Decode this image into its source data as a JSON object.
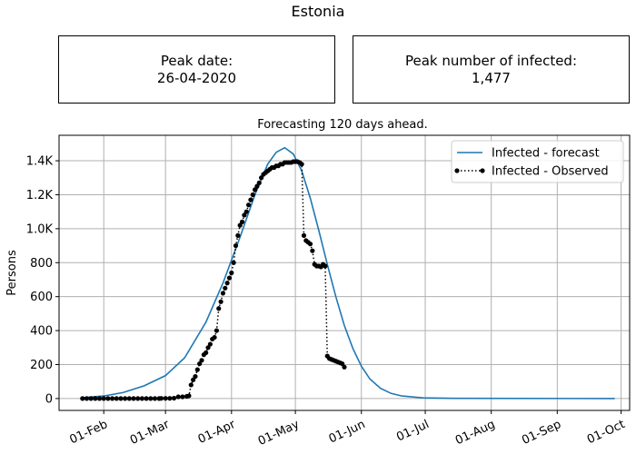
{
  "figure": {
    "suptitle": "Estonia",
    "peak_date_label": "Peak date:",
    "peak_date_value": "26-04-2020",
    "peak_infected_label": "Peak number of infected:",
    "peak_infected_value": "1,477"
  },
  "colors": {
    "forecast": "#1f77b4",
    "observed": "#000000",
    "grid": "#b0b0b0"
  },
  "chart_data": {
    "type": "line",
    "title": "Forecasting 120 days ahead.",
    "xlabel": "",
    "ylabel": "Persons",
    "grid": true,
    "legend_position": "top-right",
    "xlim": [
      "2020-01-11",
      "2020-10-05"
    ],
    "ylim": [
      -70,
      1550
    ],
    "x_ticks": [
      {
        "date": "2020-02-01",
        "label": "01-Feb"
      },
      {
        "date": "2020-03-01",
        "label": "01-Mar"
      },
      {
        "date": "2020-04-01",
        "label": "01-Apr"
      },
      {
        "date": "2020-05-01",
        "label": "01-May"
      },
      {
        "date": "2020-06-01",
        "label": "01-Jun"
      },
      {
        "date": "2020-07-01",
        "label": "01-Jul"
      },
      {
        "date": "2020-08-01",
        "label": "01-Aug"
      },
      {
        "date": "2020-09-01",
        "label": "01-Sep"
      },
      {
        "date": "2020-10-01",
        "label": "01-Oct"
      }
    ],
    "y_ticks": [
      {
        "value": 0,
        "label": "0"
      },
      {
        "value": 200,
        "label": "200"
      },
      {
        "value": 400,
        "label": "400"
      },
      {
        "value": 600,
        "label": "600"
      },
      {
        "value": 800,
        "label": "800"
      },
      {
        "value": 1000,
        "label": "1.0K"
      },
      {
        "value": 1200,
        "label": "1.2K"
      },
      {
        "value": 1400,
        "label": "1.4K"
      }
    ],
    "series": [
      {
        "name": "Infected - forecast",
        "style": "solid",
        "points": [
          [
            "2020-01-22",
            5
          ],
          [
            "2020-02-01",
            15
          ],
          [
            "2020-02-10",
            35
          ],
          [
            "2020-02-20",
            75
          ],
          [
            "2020-03-01",
            135
          ],
          [
            "2020-03-10",
            240
          ],
          [
            "2020-03-20",
            450
          ],
          [
            "2020-03-28",
            680
          ],
          [
            "2020-04-05",
            950
          ],
          [
            "2020-04-12",
            1200
          ],
          [
            "2020-04-18",
            1380
          ],
          [
            "2020-04-22",
            1450
          ],
          [
            "2020-04-26",
            1477
          ],
          [
            "2020-04-30",
            1440
          ],
          [
            "2020-05-04",
            1340
          ],
          [
            "2020-05-08",
            1180
          ],
          [
            "2020-05-12",
            990
          ],
          [
            "2020-05-16",
            790
          ],
          [
            "2020-05-20",
            600
          ],
          [
            "2020-05-24",
            430
          ],
          [
            "2020-05-28",
            295
          ],
          [
            "2020-06-01",
            190
          ],
          [
            "2020-06-05",
            115
          ],
          [
            "2020-06-10",
            60
          ],
          [
            "2020-06-15",
            30
          ],
          [
            "2020-06-20",
            15
          ],
          [
            "2020-06-30",
            4
          ],
          [
            "2020-07-15",
            1
          ],
          [
            "2020-09-28",
            0
          ]
        ]
      },
      {
        "name": "Infected - Observed",
        "style": "dotted-markers",
        "points": [
          [
            "2020-01-22",
            0
          ],
          [
            "2020-01-24",
            0
          ],
          [
            "2020-01-26",
            0
          ],
          [
            "2020-01-28",
            0
          ],
          [
            "2020-01-30",
            0
          ],
          [
            "2020-02-01",
            0
          ],
          [
            "2020-02-03",
            0
          ],
          [
            "2020-02-05",
            0
          ],
          [
            "2020-02-07",
            0
          ],
          [
            "2020-02-09",
            0
          ],
          [
            "2020-02-11",
            0
          ],
          [
            "2020-02-13",
            0
          ],
          [
            "2020-02-15",
            0
          ],
          [
            "2020-02-17",
            0
          ],
          [
            "2020-02-19",
            0
          ],
          [
            "2020-02-21",
            0
          ],
          [
            "2020-02-23",
            0
          ],
          [
            "2020-02-25",
            0
          ],
          [
            "2020-02-27",
            0
          ],
          [
            "2020-02-28",
            1
          ],
          [
            "2020-03-01",
            1
          ],
          [
            "2020-03-03",
            1
          ],
          [
            "2020-03-05",
            2
          ],
          [
            "2020-03-07",
            10
          ],
          [
            "2020-03-09",
            10
          ],
          [
            "2020-03-11",
            13
          ],
          [
            "2020-03-12",
            16
          ],
          [
            "2020-03-13",
            80
          ],
          [
            "2020-03-14",
            110
          ],
          [
            "2020-03-15",
            130
          ],
          [
            "2020-03-16",
            170
          ],
          [
            "2020-03-17",
            205
          ],
          [
            "2020-03-18",
            225
          ],
          [
            "2020-03-19",
            258
          ],
          [
            "2020-03-20",
            270
          ],
          [
            "2020-03-21",
            300
          ],
          [
            "2020-03-22",
            320
          ],
          [
            "2020-03-23",
            350
          ],
          [
            "2020-03-24",
            360
          ],
          [
            "2020-03-25",
            400
          ],
          [
            "2020-03-26",
            530
          ],
          [
            "2020-03-27",
            570
          ],
          [
            "2020-03-28",
            620
          ],
          [
            "2020-03-29",
            650
          ],
          [
            "2020-03-30",
            680
          ],
          [
            "2020-03-31",
            710
          ],
          [
            "2020-04-01",
            740
          ],
          [
            "2020-04-02",
            800
          ],
          [
            "2020-04-03",
            900
          ],
          [
            "2020-04-04",
            960
          ],
          [
            "2020-04-05",
            1020
          ],
          [
            "2020-04-06",
            1040
          ],
          [
            "2020-04-07",
            1080
          ],
          [
            "2020-04-08",
            1100
          ],
          [
            "2020-04-09",
            1140
          ],
          [
            "2020-04-10",
            1170
          ],
          [
            "2020-04-11",
            1200
          ],
          [
            "2020-04-12",
            1230
          ],
          [
            "2020-04-13",
            1250
          ],
          [
            "2020-04-14",
            1270
          ],
          [
            "2020-04-15",
            1300
          ],
          [
            "2020-04-16",
            1320
          ],
          [
            "2020-04-17",
            1330
          ],
          [
            "2020-04-18",
            1340
          ],
          [
            "2020-04-19",
            1350
          ],
          [
            "2020-04-20",
            1360
          ],
          [
            "2020-04-21",
            1360
          ],
          [
            "2020-04-22",
            1370
          ],
          [
            "2020-04-23",
            1370
          ],
          [
            "2020-04-24",
            1380
          ],
          [
            "2020-04-25",
            1380
          ],
          [
            "2020-04-26",
            1390
          ],
          [
            "2020-04-27",
            1390
          ],
          [
            "2020-04-28",
            1390
          ],
          [
            "2020-04-29",
            1390
          ],
          [
            "2020-04-30",
            1395
          ],
          [
            "2020-05-01",
            1395
          ],
          [
            "2020-05-02",
            1395
          ],
          [
            "2020-05-03",
            1390
          ],
          [
            "2020-05-04",
            1380
          ],
          [
            "2020-05-05",
            960
          ],
          [
            "2020-05-06",
            930
          ],
          [
            "2020-05-07",
            920
          ],
          [
            "2020-05-08",
            910
          ],
          [
            "2020-05-09",
            870
          ],
          [
            "2020-05-10",
            790
          ],
          [
            "2020-05-11",
            780
          ],
          [
            "2020-05-12",
            780
          ],
          [
            "2020-05-13",
            775
          ],
          [
            "2020-05-14",
            790
          ],
          [
            "2020-05-15",
            780
          ],
          [
            "2020-05-16",
            250
          ],
          [
            "2020-05-17",
            235
          ],
          [
            "2020-05-18",
            230
          ],
          [
            "2020-05-19",
            225
          ],
          [
            "2020-05-20",
            220
          ],
          [
            "2020-05-21",
            215
          ],
          [
            "2020-05-22",
            210
          ],
          [
            "2020-05-23",
            205
          ],
          [
            "2020-05-24",
            185
          ]
        ]
      }
    ]
  }
}
